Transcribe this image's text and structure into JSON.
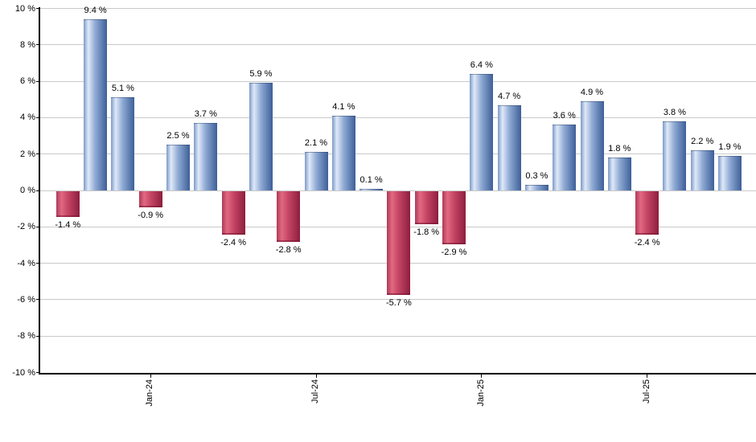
{
  "chart_data": {
    "type": "bar",
    "title": "",
    "xlabel": "",
    "ylabel": "",
    "unit": "%",
    "ylim": [
      -10,
      10
    ],
    "grid": true,
    "legend_position": "none",
    "y_tick_values": [
      10,
      8,
      6,
      4,
      2,
      0,
      -2,
      -4,
      -6,
      -8,
      -10
    ],
    "y_tick_labels": [
      "10 %",
      "8 %",
      "6 %",
      "4 %",
      "2 %",
      "0 %",
      "-2 %",
      "-4 %",
      "-6 %",
      "-8 %",
      "-10 %"
    ],
    "x_ticks": [
      {
        "label": "Jan-24",
        "bar_index": 3
      },
      {
        "label": "Jul-24",
        "bar_index": 9
      },
      {
        "label": "Jan-25",
        "bar_index": 15
      },
      {
        "label": "Jul-25",
        "bar_index": 21
      }
    ],
    "bars": [
      {
        "value": -1.4,
        "label": "-1.4 %"
      },
      {
        "value": 9.4,
        "label": "9.4 %"
      },
      {
        "value": 5.1,
        "label": "5.1 %"
      },
      {
        "value": -0.9,
        "label": "-0.9 %"
      },
      {
        "value": 2.5,
        "label": "2.5 %"
      },
      {
        "value": 3.7,
        "label": "3.7 %"
      },
      {
        "value": -2.4,
        "label": "-2.4 %"
      },
      {
        "value": 5.9,
        "label": "5.9 %"
      },
      {
        "value": -2.8,
        "label": "-2.8 %"
      },
      {
        "value": 2.1,
        "label": "2.1 %"
      },
      {
        "value": 4.1,
        "label": "4.1 %"
      },
      {
        "value": 0.1,
        "label": "0.1 %"
      },
      {
        "value": -5.7,
        "label": "-5.7 %"
      },
      {
        "value": -1.8,
        "label": "-1.8 %"
      },
      {
        "value": -2.9,
        "label": "-2.9 %"
      },
      {
        "value": 6.4,
        "label": "6.4 %"
      },
      {
        "value": 4.7,
        "label": "4.7 %"
      },
      {
        "value": 0.3,
        "label": "0.3 %"
      },
      {
        "value": 3.6,
        "label": "3.6 %"
      },
      {
        "value": 4.9,
        "label": "4.9 %"
      },
      {
        "value": 1.8,
        "label": "1.8 %"
      },
      {
        "value": -2.4,
        "label": "-2.4 %"
      },
      {
        "value": 3.8,
        "label": "3.8 %"
      },
      {
        "value": 2.2,
        "label": "2.2 %"
      },
      {
        "value": 1.9,
        "label": "1.9 %"
      }
    ]
  },
  "colors": {
    "positive_bar_edge_left": "#7d9ac8",
    "positive_bar_highlight": "#dfe9f8",
    "positive_bar_mid": "#8ea9d3",
    "positive_bar_edge_right": "#3d5f99",
    "negative_bar_edge_left": "#ad3a58",
    "negative_bar_highlight": "#e26981",
    "negative_bar_mid": "#c54565",
    "negative_bar_edge_right": "#8e1e3e",
    "gridline": "#c9c9c9",
    "axis": "#000000",
    "label_text": "#000000",
    "background": "#ffffff"
  }
}
